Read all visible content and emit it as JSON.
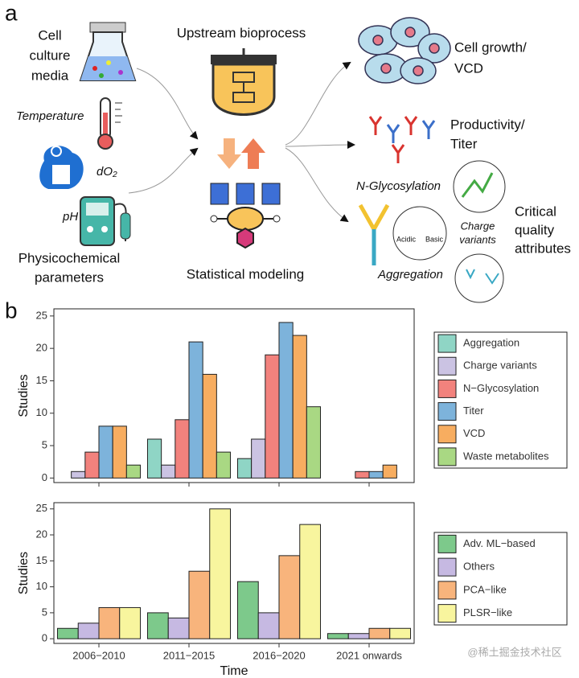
{
  "diagram": {
    "panel_a_label": "a",
    "panel_b_label": "b",
    "cell_culture_media": [
      "Cell",
      "culture",
      "media"
    ],
    "temperature": "Temperature",
    "do2": "dO₂",
    "ph": "pH",
    "physicochemical_parameters": [
      "Physicochemical",
      "parameters"
    ],
    "upstream_bioprocess": "Upstream bioprocess",
    "statistical_modeling": "Statistical modeling",
    "cell_growth_vcd": [
      "Cell growth/",
      "VCD"
    ],
    "productivity_titer": [
      "Productivity/",
      "Titer"
    ],
    "n_glycosylation": "N-Glycosylation",
    "charge_variants": [
      "Charge",
      "variants"
    ],
    "acidic": "Acidic",
    "basic": "Basic",
    "critical_quality_attributes": [
      "Critical",
      "quality",
      "attributes"
    ],
    "aggregation": "Aggregation"
  },
  "chart_data": [
    {
      "type": "bar",
      "ylabel": "Studies",
      "categories": [
        null,
        null,
        null,
        null
      ],
      "series": [
        {
          "name": "Aggregation",
          "color": "#8fd5c5",
          "values": [
            0,
            6,
            3,
            0
          ]
        },
        {
          "name": "Charge variants",
          "color": "#cbc3e3",
          "values": [
            1,
            2,
            6,
            0
          ]
        },
        {
          "name": "N−Glycosylation",
          "color": "#f2827d",
          "values": [
            4,
            9,
            19,
            1
          ]
        },
        {
          "name": "Titer",
          "color": "#7db3db",
          "values": [
            8,
            21,
            24,
            1
          ]
        },
        {
          "name": "VCD",
          "color": "#f7ad60",
          "values": [
            8,
            16,
            22,
            2
          ]
        },
        {
          "name": "Waste metabolites",
          "color": "#a9d883",
          "values": [
            2,
            4,
            11,
            0
          ]
        }
      ],
      "ylim": [
        -0.7,
        26.1
      ],
      "yticks": [
        0,
        5,
        10,
        15,
        20,
        25
      ]
    },
    {
      "type": "bar",
      "ylabel": "Studies",
      "xlabel": "Time",
      "categories": [
        "2006−2010",
        "2011−2015",
        "2016−2020",
        "2021 onwards"
      ],
      "series": [
        {
          "name": "Adv. ML−based",
          "color": "#7dc98b",
          "values": [
            2,
            5,
            11,
            1
          ]
        },
        {
          "name": "Others",
          "color": "#c6b9e2",
          "values": [
            3,
            4,
            5,
            1
          ]
        },
        {
          "name": "PCA−like",
          "color": "#f8b47c",
          "values": [
            6,
            13,
            16,
            2
          ]
        },
        {
          "name": "PLSR−like",
          "color": "#f8f59e",
          "values": [
            6,
            25,
            22,
            2
          ]
        }
      ],
      "ylim": [
        -0.9,
        26.2
      ],
      "yticks": [
        0,
        5,
        10,
        15,
        20,
        25
      ]
    }
  ],
  "watermark": "@稀土掘金技术社区"
}
